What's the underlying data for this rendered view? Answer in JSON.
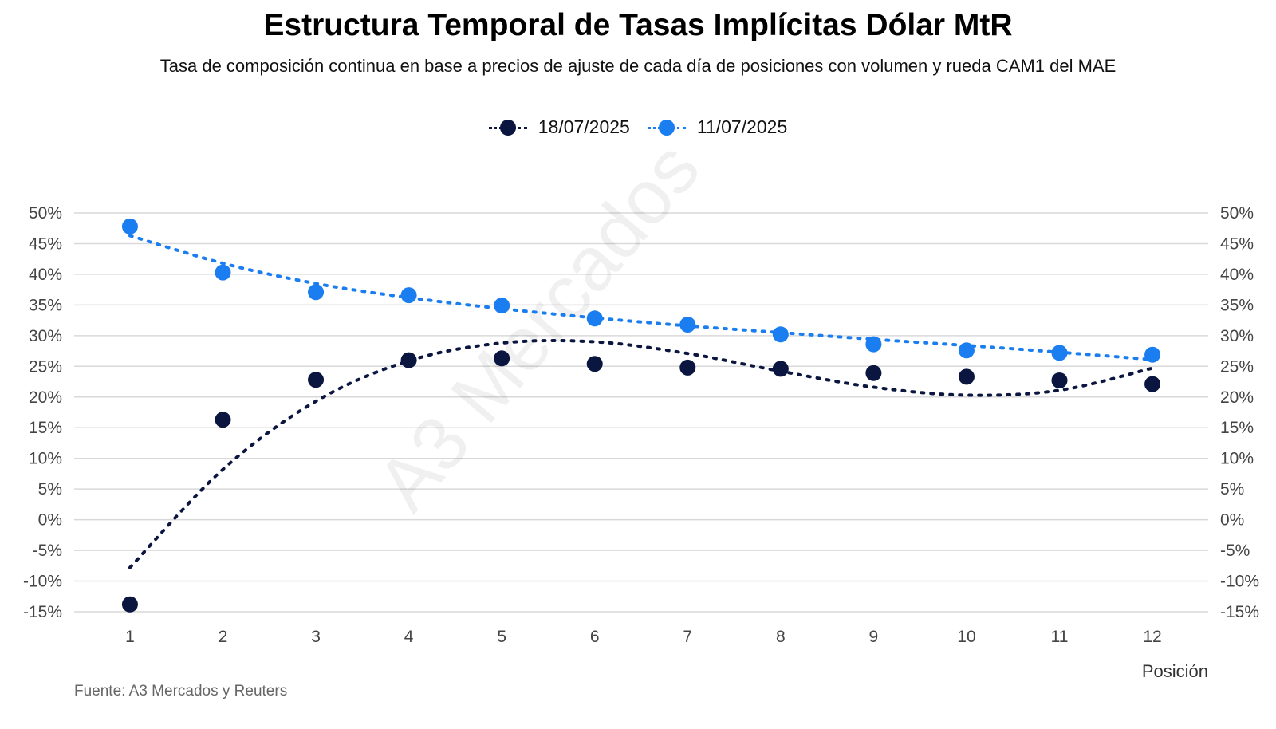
{
  "chart_data": {
    "type": "scatter",
    "title": "Estructura Temporal de Tasas Implícitas Dólar MtR",
    "subtitle": "Tasa de composición continua en base a precios de ajuste de cada día de posiciones con volumen y rueda CAM1 del MAE",
    "xlabel": "Posición",
    "ylabel": "",
    "x": [
      1,
      2,
      3,
      4,
      5,
      6,
      7,
      8,
      9,
      10,
      11,
      12
    ],
    "xticks": [
      "1",
      "2",
      "3",
      "4",
      "5",
      "6",
      "7",
      "8",
      "9",
      "10",
      "11",
      "12"
    ],
    "ylim": [
      -15,
      50
    ],
    "yticks": [
      "50%",
      "45%",
      "40%",
      "35%",
      "30%",
      "25%",
      "20%",
      "15%",
      "10%",
      "5%",
      "0%",
      "-5%",
      "-10%",
      "-15%"
    ],
    "grid": true,
    "legend_position": "top-center",
    "series": [
      {
        "name": "18/07/2025",
        "color": "#0b1640",
        "values": [
          -13.8,
          16.3,
          22.8,
          26.0,
          26.3,
          25.4,
          24.8,
          24.6,
          23.9,
          23.3,
          22.7,
          22.1
        ],
        "trend": [
          -7.8,
          8.2,
          19.3,
          25.9,
          28.8,
          29.0,
          27.1,
          24.2,
          21.6,
          20.3,
          21.1,
          24.7
        ]
      },
      {
        "name": "11/07/2025",
        "color": "#1a7df0",
        "values": [
          47.8,
          40.3,
          37.1,
          36.6,
          34.9,
          32.8,
          31.8,
          30.2,
          28.6,
          27.6,
          27.2,
          26.9
        ],
        "trend": [
          46.3,
          41.8,
          38.5,
          36.2,
          34.4,
          32.9,
          31.6,
          30.5,
          29.4,
          28.4,
          27.3,
          26.1
        ]
      }
    ]
  },
  "source": "Fuente: A3 Mercados y Reuters",
  "watermark": "A3 Mercados"
}
